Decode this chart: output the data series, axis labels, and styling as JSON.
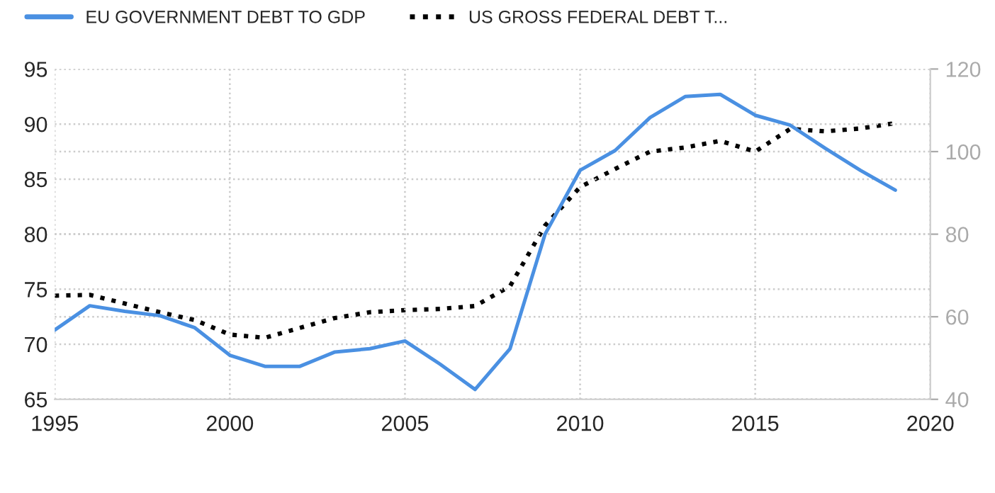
{
  "chart_data": {
    "type": "line",
    "x": [
      1995,
      1996,
      1997,
      1998,
      1999,
      2000,
      2001,
      2002,
      2003,
      2004,
      2005,
      2006,
      2007,
      2008,
      2009,
      2010,
      2011,
      2012,
      2013,
      2014,
      2015,
      2016,
      2017,
      2018,
      2019
    ],
    "series": [
      {
        "name": "EU GOVERNMENT DEBT TO GDP",
        "color": "#4a90e2",
        "line_style": "solid",
        "values": [
          71.3,
          73.5,
          73.0,
          72.6,
          71.5,
          69.0,
          68.0,
          68.0,
          69.3,
          69.6,
          70.3,
          68.2,
          65.9,
          69.6,
          80.0,
          85.8,
          87.6,
          90.6,
          92.5,
          92.7,
          90.8,
          89.9,
          87.8,
          85.8,
          84.0
        ]
      },
      {
        "name": "US GROSS FEDERAL DEBT T...",
        "color": "#000000",
        "line_style": "dotted",
        "axis": "y2",
        "values": [
          65.1,
          65.3,
          63.2,
          61.1,
          59.2,
          55.7,
          54.9,
          57.3,
          59.7,
          61.1,
          61.6,
          61.9,
          62.6,
          67.4,
          82.1,
          91.4,
          95.8,
          100.0,
          101.0,
          102.6,
          100.0,
          105.5,
          104.9,
          105.6,
          106.9
        ]
      }
    ],
    "xlim": [
      1995,
      2020
    ],
    "xticks": [
      1995,
      2000,
      2005,
      2010,
      2015,
      2020
    ],
    "ylim": [
      65,
      95
    ],
    "yticks": [
      65,
      70,
      75,
      80,
      85,
      90,
      95
    ],
    "y2lim": [
      40,
      120
    ],
    "y2ticks": [
      40,
      60,
      80,
      100,
      120
    ],
    "grid": true,
    "legend": "top left",
    "marker": "none"
  }
}
